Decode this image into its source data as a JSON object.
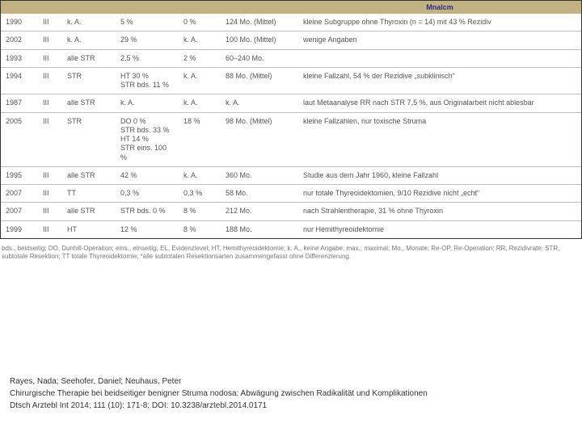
{
  "table": {
    "header": {
      "label": "Mnalcm"
    },
    "columns": [
      "year",
      "evidence",
      "op",
      "rate",
      "reop",
      "followup",
      "note"
    ],
    "rows": [
      {
        "year": "1990",
        "evidence": "III",
        "op": "k. A.",
        "rate": "5 %",
        "reop": "0 %",
        "followup": "124 Mo. (Mittel)",
        "note": "kleine Subgruppe ohne Thyroxin (n = 14) mit 43 % Rezidiv"
      },
      {
        "year": "2002",
        "evidence": "III",
        "op": "k. A.",
        "rate": "29 %",
        "reop": "k. A.",
        "followup": "100 Mo. (Mittel)",
        "note": "wenige Angaben"
      },
      {
        "year": "1993",
        "evidence": "III",
        "op": "alle STR",
        "rate": "2,5 %",
        "reop": "2 %",
        "followup": "60–240 Mo.",
        "note": ""
      },
      {
        "year": "1994",
        "evidence": "III",
        "op": "STR",
        "rate": "HT 30 %\nSTR bds. 11 %",
        "reop": "k. A.",
        "followup": "88 Mo. (Mittel)",
        "note": "kleine Fallzahl, 54 % der Rezidive „subklinisch“"
      },
      {
        "year": "1987",
        "evidence": "III",
        "op": "alle STR",
        "rate": "k. A.",
        "reop": "k. A.",
        "followup": "k. A.",
        "note": "laut Metaanalyse RR nach STR 7,5 %, aus Originalarbeit nicht ablesbar"
      },
      {
        "year": "2005",
        "evidence": "III",
        "op": "STR",
        "rate": "DO 0 %\nSTR bds. 33 %\nHT 14 %\nSTR eins. 100 %",
        "reop": "18 %",
        "followup": "98 Mo. (Mittel)",
        "note": "kleine Fallzahlen, nur toxische Struma"
      },
      {
        "year": "1995",
        "evidence": "III",
        "op": "alle STR",
        "rate": "42 %",
        "reop": "k. A.",
        "followup": "360 Mo.",
        "note": "Studie aus dem Jahr 1960, kleine Fallzahl"
      },
      {
        "year": "2007",
        "evidence": "III",
        "op": "TT",
        "rate": "0,3 %",
        "reop": "0,3 %",
        "followup": "58 Mo.",
        "note": "nur totale Thyreoidektomien, 9/10 Rezidive nicht „echt“"
      },
      {
        "year": "2007",
        "evidence": "III",
        "op": "alle STR",
        "rate": "STR bds. 0 %",
        "reop": "8 %",
        "followup": "212 Mo.",
        "note": "nach Strahlentherapie, 31 % ohne Thyroxin"
      },
      {
        "year": "1999",
        "evidence": "III",
        "op": "HT",
        "rate": "12 %",
        "reop": "8 %",
        "followup": "188 Mo.",
        "note": "nur Hemithyreoidektomie"
      }
    ],
    "footnote": "bds., beidseitig; DO, Dunhill-Operation; eins., einseitig; EL, Evidenzlevel; HT, Hemithyreoidektomie; k. A., keine Angabe; max., maximal; Mo., Monate; Re-OP, Re-Operation; RR, Rezidivrate; STR, subtotale Resektion; TT totale Thyreoidektomie; *alle subtotalen Resektionsarten zusammengefasst ohne Differenzierung."
  },
  "citation": {
    "line1": "Rayes, Nada; Seehofer, Daniel; Neuhaus, Peter",
    "line2": "Chirurgische Therapie bei beidseitiger benigner Struma nodosa: Abwägung zwischen Radikalität und Komplikationen",
    "line3": "Dtsch Arztebl Int 2014; 111 (10): 171-8; DOI: 10.3238/arztebl.2014.0171"
  },
  "colors": {
    "header_bg": "#c2b281",
    "header_text": "#2a2a88",
    "row_border": "#bfbfbf",
    "text": "#555555"
  }
}
